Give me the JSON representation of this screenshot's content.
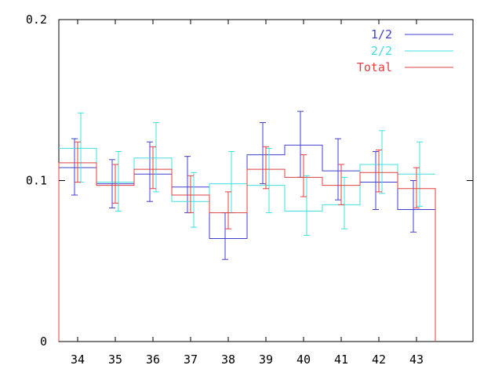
{
  "chart_data": {
    "type": "line",
    "step": true,
    "x": [
      "34",
      "35",
      "36",
      "37",
      "38",
      "39",
      "40",
      "41",
      "42",
      "43"
    ],
    "ylim": [
      0,
      0.2
    ],
    "yticks": [
      "0",
      "0.1",
      "0.2"
    ],
    "legend_position": "top-right",
    "series": [
      {
        "name": "1/2",
        "color": "#4040d0",
        "values": [
          0.108,
          0.098,
          0.104,
          0.096,
          0.064,
          0.116,
          0.122,
          0.106,
          0.099,
          0.082
        ],
        "err_low": [
          0.091,
          0.083,
          0.087,
          0.08,
          0.051,
          0.098,
          0.102,
          0.088,
          0.082,
          0.068
        ],
        "err_high": [
          0.126,
          0.113,
          0.124,
          0.115,
          0.08,
          0.136,
          0.143,
          0.126,
          0.118,
          0.1
        ]
      },
      {
        "name": "2/2",
        "color": "#40e0e0",
        "values": [
          0.12,
          0.099,
          0.114,
          0.087,
          0.098,
          0.097,
          0.081,
          0.085,
          0.11,
          0.104
        ],
        "err_low": [
          0.099,
          0.081,
          0.093,
          0.071,
          0.08,
          0.08,
          0.066,
          0.07,
          0.092,
          0.084
        ],
        "err_high": [
          0.142,
          0.118,
          0.136,
          0.105,
          0.118,
          0.12,
          0.103,
          0.102,
          0.131,
          0.124
        ]
      },
      {
        "name": "Total",
        "color": "#e04040",
        "values": [
          0.111,
          0.097,
          0.107,
          0.091,
          0.08,
          0.107,
          0.102,
          0.097,
          0.105,
          0.095
        ],
        "err_low": [
          0.099,
          0.086,
          0.095,
          0.08,
          0.07,
          0.095,
          0.09,
          0.085,
          0.093,
          0.083
        ],
        "err_high": [
          0.124,
          0.11,
          0.121,
          0.103,
          0.093,
          0.121,
          0.116,
          0.11,
          0.119,
          0.108
        ]
      }
    ]
  }
}
